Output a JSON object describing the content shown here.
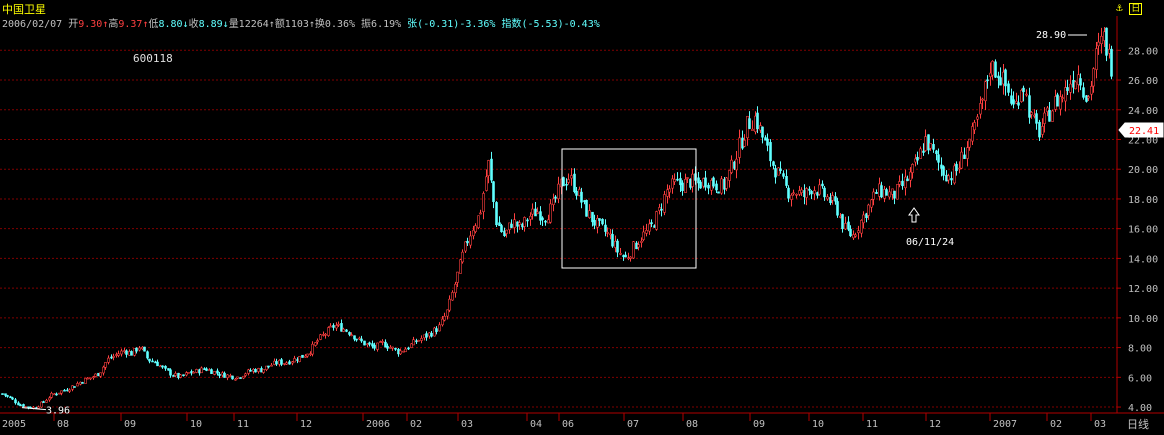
{
  "title": "中国卫星",
  "code": "600118",
  "info": [
    {
      "t": "2006/02/07",
      "c": "#c0c0c0"
    },
    {
      "t": " 开",
      "c": "#c0c0c0"
    },
    {
      "t": "9.30↑",
      "c": "#ff4040"
    },
    {
      "t": "高",
      "c": "#c0c0c0"
    },
    {
      "t": "9.37↑",
      "c": "#ff4040"
    },
    {
      "t": "低",
      "c": "#c0c0c0"
    },
    {
      "t": "8.80↓",
      "c": "#60ffff"
    },
    {
      "t": "收",
      "c": "#c0c0c0"
    },
    {
      "t": "8.89↓",
      "c": "#60ffff"
    },
    {
      "t": "量12264↑",
      "c": "#c0c0c0"
    },
    {
      "t": "额1103↑",
      "c": "#c0c0c0"
    },
    {
      "t": "换0.36%",
      "c": "#c0c0c0"
    },
    {
      "t": " 振6.19%",
      "c": "#c0c0c0"
    },
    {
      "t": " 张(-0.31)-3.36%",
      "c": "#60ffff"
    },
    {
      "t": " 指数(-5.53)-0.43%",
      "c": "#60ffff"
    }
  ],
  "timeframe": "日线",
  "chart_data": {
    "type": "candlestick",
    "ylim": [
      3.6,
      29.5
    ],
    "y_ticks": [
      4,
      6,
      8,
      10,
      12,
      14,
      16,
      18,
      20,
      22,
      24,
      26,
      28
    ],
    "y_tick_labels": [
      "4.00",
      "6.00",
      "8.00",
      "10.00",
      "12.00",
      "14.00",
      "16.00",
      "18.00",
      "20.00",
      "22.00",
      "24.00",
      "26.00",
      "28.00"
    ],
    "x_labels": [
      "2005",
      "08",
      "09",
      "10",
      "11",
      "12",
      "2006",
      "02",
      "03",
      "04",
      "06",
      "07",
      "08",
      "09",
      "10",
      "11",
      "12",
      "2007",
      "02",
      "03"
    ],
    "current_price": "22.41",
    "annotations": [
      {
        "text": "3.96",
        "value": 3.96,
        "kind": "low"
      },
      {
        "text": "28.90",
        "value": 28.9,
        "kind": "high"
      },
      {
        "text": "06/11/24",
        "value": 16.0,
        "kind": "arrow"
      }
    ],
    "price_path": [
      4.9,
      4.6,
      4.2,
      4.0,
      3.96,
      4.3,
      4.8,
      5.0,
      5.2,
      5.5,
      5.8,
      6.0,
      6.3,
      7.2,
      7.5,
      7.8,
      7.6,
      8.1,
      7.2,
      7.0,
      6.5,
      6.2,
      6.0,
      6.3,
      6.4,
      6.6,
      6.4,
      6.2,
      6.1,
      6.0,
      6.3,
      6.5,
      6.5,
      6.8,
      7.0,
      7.0,
      7.2,
      7.4,
      7.8,
      8.5,
      9.0,
      9.5,
      9.3,
      9.0,
      8.5,
      8.2,
      8.0,
      8.3,
      8.0,
      7.7,
      8.0,
      8.4,
      8.7,
      9.0,
      9.4,
      10.5,
      12.5,
      14.5,
      16.0,
      17.0,
      20.5,
      16.5,
      15.5,
      16.5,
      16.0,
      16.8,
      17.2,
      16.8,
      17.5,
      19.0,
      19.5,
      18.5,
      17.3,
      16.5,
      16.0,
      15.5,
      14.5,
      14.0,
      14.8,
      15.5,
      16.0,
      17.0,
      18.5,
      19.0,
      19.0,
      19.2,
      19.0,
      19.3,
      19.0,
      18.8,
      20.0,
      21.5,
      23.0,
      23.5,
      22.0,
      20.5,
      19.5,
      18.5,
      18.5,
      18.2,
      18.8,
      18.5,
      18.0,
      17.5,
      16.0,
      15.5,
      16.5,
      17.5,
      18.5,
      18.5,
      18.2,
      18.8,
      19.5,
      20.5,
      22.0,
      21.0,
      20.0,
      19.5,
      20.0,
      21.5,
      22.5,
      24.5,
      27.0,
      26.5,
      25.5,
      24.0,
      26.0,
      23.5,
      22.5,
      23.5,
      24.5,
      25.0,
      26.0,
      26.5,
      24.5,
      27.5,
      28.9,
      27.0
    ]
  },
  "colors": {
    "up": "#ff4040",
    "down": "#60ffff",
    "grid": "#800000",
    "axis": "#b00000",
    "label": "#c0c0c0",
    "annotation": "#ffffff"
  }
}
